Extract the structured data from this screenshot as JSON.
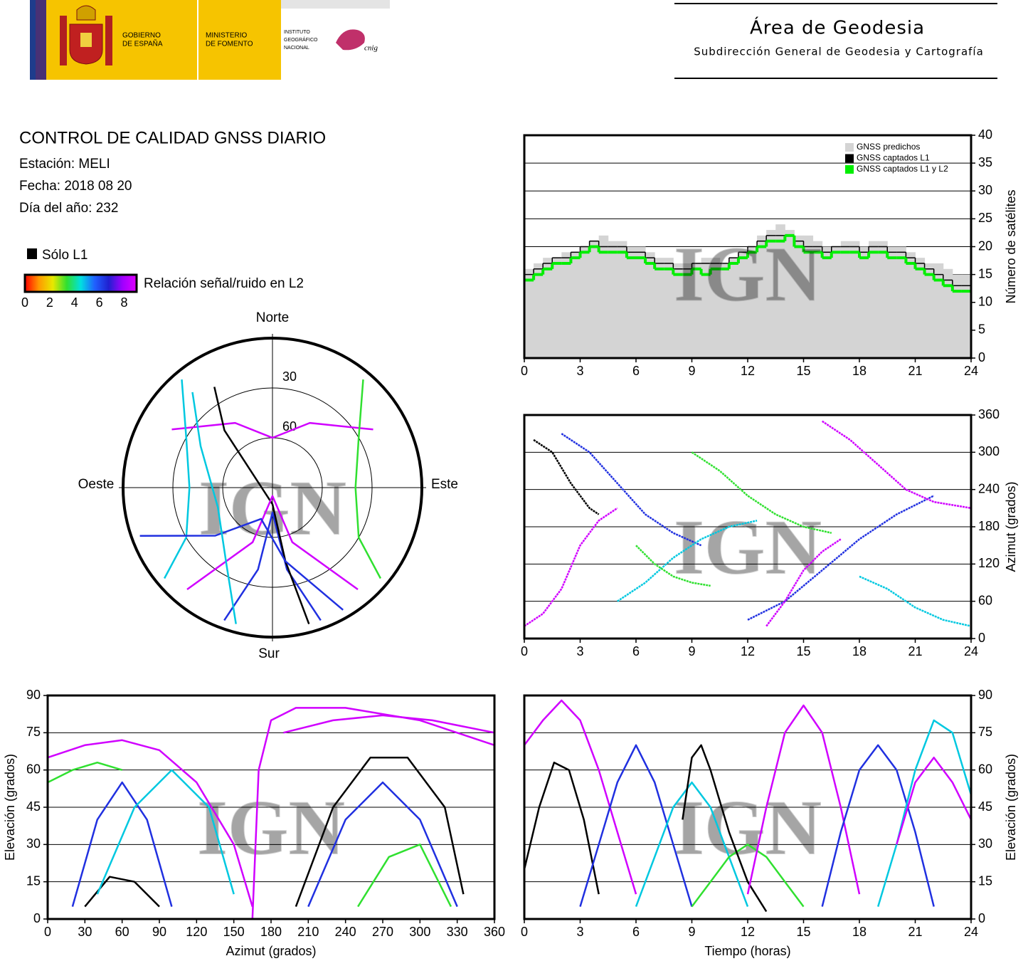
{
  "header": {
    "title": "Área de Geodesia",
    "subtitle": "Subdirección General de Geodesia y Cartografía",
    "gobierno": [
      "GOBIERNO",
      "DE ESPAÑA"
    ],
    "ministerio": [
      "MINISTERIO",
      "DE FOMENTO"
    ],
    "instituto": [
      "INSTITUTO",
      "GEOGRÁFICO",
      "NACIONAL"
    ],
    "cnig": "cnig"
  },
  "report": {
    "title": "CONTROL DE CALIDAD GNSS DIARIO",
    "station": "Estación: MELI",
    "date": "Fecha: 2018 08 20",
    "doy": "Día del año: 232",
    "legend_l1": "Sólo L1",
    "colorbar_label": "Relación señal/ruido en L2",
    "colorbar_range": [
      0,
      9
    ],
    "colorbar_ticks": [
      0,
      2,
      4,
      6,
      8
    ],
    "colorbar_colors": [
      "#ff0000",
      "#ff9900",
      "#e8e800",
      "#30e030",
      "#00e0e0",
      "#2060ff",
      "#2020d0",
      "#a000ff",
      "#e000ff"
    ]
  },
  "watermark": "IGN",
  "chart_data": [
    {
      "type": "step",
      "ylabel": "Número de satélites",
      "yaxis_position": "right",
      "grid": true,
      "legend": "top-right",
      "xlim": [
        0,
        24
      ],
      "xticks": [
        0,
        3,
        6,
        9,
        12,
        15,
        18,
        21,
        24
      ],
      "ylim": [
        0,
        40
      ],
      "yticks": [
        0,
        5,
        10,
        15,
        20,
        25,
        30,
        35,
        40
      ],
      "x": [
        0,
        0.5,
        1,
        1.5,
        2,
        2.5,
        3,
        3.5,
        4,
        4.5,
        5,
        5.5,
        6,
        6.5,
        7,
        7.5,
        8,
        8.5,
        9,
        9.5,
        10,
        10.5,
        11,
        11.5,
        12,
        12.5,
        13,
        13.5,
        14,
        14.5,
        15,
        15.5,
        16,
        16.5,
        17,
        17.5,
        18,
        18.5,
        19,
        19.5,
        20,
        20.5,
        21,
        21.5,
        22,
        22.5,
        23,
        23.5,
        24
      ],
      "series": [
        {
          "name": "GNSS predichos",
          "color": "#d4d4d4",
          "fill": true,
          "values": [
            16,
            17,
            18,
            18,
            19,
            19,
            20,
            21,
            22,
            21,
            21,
            20,
            20,
            19,
            18,
            18,
            17,
            17,
            17,
            18,
            18,
            17,
            18,
            19,
            20,
            22,
            23,
            24,
            23,
            22,
            22,
            21,
            20,
            20,
            21,
            21,
            20,
            21,
            21,
            20,
            20,
            19,
            18,
            17,
            17,
            16,
            15,
            15,
            15
          ]
        },
        {
          "name": "GNSS captados L1",
          "color": "#000000",
          "fill": false,
          "values": [
            15,
            16,
            17,
            18,
            18,
            19,
            20,
            21,
            20,
            20,
            20,
            19,
            19,
            18,
            17,
            17,
            16,
            16,
            17,
            17,
            17,
            17,
            18,
            19,
            20,
            21,
            22,
            22,
            22,
            21,
            20,
            20,
            19,
            20,
            20,
            20,
            19,
            20,
            20,
            19,
            19,
            18,
            17,
            16,
            15,
            14,
            13,
            13,
            14
          ]
        },
        {
          "name": "GNSS captados L1 y L2",
          "color": "#00ee00",
          "fill": false,
          "values": [
            14,
            15,
            16,
            17,
            17,
            18,
            19,
            20,
            19,
            19,
            19,
            18,
            18,
            17,
            16,
            16,
            15,
            15,
            16,
            15,
            16,
            16,
            17,
            18,
            19,
            20,
            21,
            21,
            22,
            20,
            19,
            19,
            18,
            19,
            19,
            19,
            18,
            19,
            19,
            18,
            18,
            17,
            16,
            15,
            14,
            13,
            12,
            12,
            12
          ]
        }
      ]
    },
    {
      "type": "line",
      "ylabel": "Azimut (grados)",
      "yaxis_position": "right",
      "grid": true,
      "xlim": [
        0,
        24
      ],
      "xticks": [
        0,
        3,
        6,
        9,
        12,
        15,
        18,
        21,
        24
      ],
      "ylim": [
        0,
        360
      ],
      "yticks": [
        0,
        60,
        120,
        180,
        240,
        300,
        360
      ],
      "series": [
        {
          "color": "#d000ff",
          "x": [
            0,
            1,
            2,
            3,
            4,
            5
          ],
          "values": [
            20,
            40,
            80,
            150,
            190,
            210
          ]
        },
        {
          "color": "#2030e0",
          "x": [
            2,
            3.5,
            5,
            6.5,
            8,
            9.5
          ],
          "values": [
            330,
            300,
            250,
            200,
            170,
            150
          ]
        },
        {
          "color": "#00c8e0",
          "x": [
            5,
            6.5,
            8,
            9.5,
            11,
            12.5
          ],
          "values": [
            60,
            90,
            130,
            160,
            180,
            190
          ]
        },
        {
          "color": "#30e030",
          "x": [
            9,
            10.5,
            12,
            13.5,
            15,
            16.5
          ],
          "values": [
            300,
            270,
            230,
            200,
            180,
            170
          ]
        },
        {
          "color": "#000000",
          "x": [
            0.5,
            1.5,
            2.5,
            3.5,
            4
          ],
          "values": [
            320,
            300,
            250,
            210,
            200
          ]
        },
        {
          "color": "#2030e0",
          "x": [
            12,
            14,
            16,
            18,
            20,
            22
          ],
          "values": [
            30,
            60,
            110,
            160,
            200,
            230
          ]
        },
        {
          "color": "#d000ff",
          "x": [
            16,
            17.5,
            19,
            20.5,
            22,
            24
          ],
          "values": [
            350,
            320,
            280,
            240,
            220,
            210
          ]
        },
        {
          "color": "#00c8e0",
          "x": [
            18,
            19.5,
            21,
            22.5,
            24
          ],
          "values": [
            100,
            80,
            50,
            30,
            20
          ]
        },
        {
          "color": "#30e030",
          "x": [
            6,
            7,
            8,
            9,
            10
          ],
          "values": [
            150,
            120,
            100,
            90,
            85
          ]
        },
        {
          "color": "#d000ff",
          "x": [
            13,
            14,
            15,
            16,
            17
          ],
          "values": [
            20,
            60,
            110,
            140,
            160
          ]
        }
      ]
    },
    {
      "type": "polar",
      "north": "Norte",
      "south": "Sur",
      "east": "Este",
      "west": "Oeste",
      "rlim": [
        0,
        90
      ],
      "rticks": [
        30,
        60
      ],
      "series": [
        {
          "color": "#d000ff",
          "azimuth": [
            300,
            330,
            0,
            30,
            60
          ],
          "elevation": [
            20,
            45,
            60,
            45,
            20
          ]
        },
        {
          "color": "#2030e0",
          "azimuth": [
            200,
            190,
            180,
            170,
            160
          ],
          "elevation": [
            5,
            40,
            75,
            40,
            5
          ]
        },
        {
          "color": "#00c8e0",
          "azimuth": [
            230,
            240,
            270,
            300,
            320
          ],
          "elevation": [
            5,
            30,
            40,
            30,
            5
          ]
        },
        {
          "color": "#30e030",
          "azimuth": [
            130,
            120,
            90,
            60,
            40
          ],
          "elevation": [
            5,
            30,
            40,
            30,
            5
          ]
        },
        {
          "color": "#000000",
          "azimuth": [
            165,
            170,
            180,
            320,
            330
          ],
          "elevation": [
            5,
            45,
            80,
            45,
            20
          ]
        },
        {
          "color": "#d000ff",
          "azimuth": [
            220,
            200,
            180,
            160,
            140
          ],
          "elevation": [
            10,
            55,
            85,
            55,
            10
          ]
        },
        {
          "color": "#2030e0",
          "azimuth": [
            250,
            230,
            200,
            170,
            150
          ],
          "elevation": [
            5,
            45,
            70,
            45,
            5
          ]
        },
        {
          "color": "#00c8e0",
          "azimuth": [
            320,
            300,
            250,
            210,
            195
          ],
          "elevation": [
            15,
            40,
            55,
            35,
            5
          ]
        }
      ]
    },
    {
      "type": "line",
      "xlabel": "Azimut (grados)",
      "ylabel": "Elevación (grados)",
      "yaxis_position": "left",
      "grid": true,
      "xlim": [
        0,
        360
      ],
      "xticks": [
        0,
        30,
        60,
        90,
        120,
        150,
        180,
        210,
        240,
        270,
        300,
        330,
        360
      ],
      "ylim": [
        0,
        90
      ],
      "yticks": [
        0,
        15,
        30,
        45,
        60,
        75,
        90
      ],
      "series": [
        {
          "color": "#d000ff",
          "x": [
            0,
            30,
            60,
            90,
            120,
            150,
            165
          ],
          "values": [
            65,
            70,
            72,
            68,
            55,
            30,
            5
          ]
        },
        {
          "color": "#2030e0",
          "x": [
            20,
            40,
            60,
            80,
            100
          ],
          "values": [
            5,
            40,
            55,
            40,
            5
          ]
        },
        {
          "color": "#000000",
          "x": [
            30,
            50,
            70,
            90
          ],
          "values": [
            5,
            17,
            15,
            5
          ]
        },
        {
          "color": "#00c8e0",
          "x": [
            40,
            70,
            100,
            130,
            150
          ],
          "values": [
            10,
            45,
            60,
            45,
            10
          ]
        },
        {
          "color": "#000000",
          "x": [
            200,
            230,
            260,
            290,
            320,
            335
          ],
          "values": [
            5,
            45,
            65,
            65,
            45,
            10
          ]
        },
        {
          "color": "#d000ff",
          "x": [
            190,
            230,
            270,
            310,
            350,
            360
          ],
          "values": [
            75,
            80,
            82,
            80,
            76,
            75
          ]
        },
        {
          "color": "#2030e0",
          "x": [
            210,
            240,
            270,
            300,
            330
          ],
          "values": [
            5,
            40,
            55,
            40,
            5
          ]
        },
        {
          "color": "#30e030",
          "x": [
            250,
            275,
            300,
            325
          ],
          "values": [
            5,
            25,
            30,
            5
          ]
        },
        {
          "color": "#d000ff",
          "x": [
            165,
            170,
            180,
            200,
            240,
            300,
            360
          ],
          "values": [
            0,
            60,
            80,
            85,
            85,
            80,
            70
          ]
        },
        {
          "color": "#30e030",
          "x": [
            0,
            20,
            40,
            60
          ],
          "values": [
            55,
            60,
            63,
            60
          ]
        }
      ]
    },
    {
      "type": "line",
      "xlabel": "Tiempo (horas)",
      "ylabel": "Elevación (grados)",
      "yaxis_position": "right",
      "grid": true,
      "xlim": [
        0,
        24
      ],
      "xticks": [
        0,
        3,
        6,
        9,
        12,
        15,
        18,
        21,
        24
      ],
      "ylim": [
        0,
        90
      ],
      "yticks": [
        0,
        15,
        30,
        45,
        60,
        75,
        90
      ],
      "series": [
        {
          "color": "#d000ff",
          "x": [
            0,
            1,
            2,
            3,
            4,
            5,
            6
          ],
          "values": [
            70,
            80,
            88,
            80,
            60,
            35,
            10
          ]
        },
        {
          "color": "#000000",
          "x": [
            0,
            0.8,
            1.6,
            2.4,
            3.2,
            4
          ],
          "values": [
            20,
            45,
            63,
            60,
            40,
            10
          ]
        },
        {
          "color": "#2030e0",
          "x": [
            3,
            4,
            5,
            6,
            7,
            8,
            9
          ],
          "values": [
            5,
            30,
            55,
            70,
            55,
            30,
            5
          ]
        },
        {
          "color": "#00c8e0",
          "x": [
            6,
            7,
            8,
            9,
            10,
            11,
            12
          ],
          "values": [
            5,
            25,
            45,
            55,
            45,
            25,
            5
          ]
        },
        {
          "color": "#30e030",
          "x": [
            9,
            10,
            11,
            12,
            13,
            14,
            15
          ],
          "values": [
            5,
            15,
            25,
            30,
            25,
            15,
            5
          ]
        },
        {
          "color": "#000000",
          "x": [
            8.5,
            9,
            9.5,
            10,
            11,
            12,
            13
          ],
          "values": [
            40,
            65,
            70,
            60,
            35,
            15,
            3
          ]
        },
        {
          "color": "#d000ff",
          "x": [
            12,
            13,
            14,
            15,
            16,
            17,
            18
          ],
          "values": [
            10,
            45,
            75,
            86,
            75,
            45,
            10
          ]
        },
        {
          "color": "#2030e0",
          "x": [
            16,
            17,
            18,
            19,
            20,
            21,
            22
          ],
          "values": [
            5,
            35,
            60,
            70,
            60,
            35,
            5
          ]
        },
        {
          "color": "#00c8e0",
          "x": [
            19,
            20,
            21,
            22,
            23,
            24
          ],
          "values": [
            5,
            30,
            60,
            80,
            75,
            50
          ]
        },
        {
          "color": "#d000ff",
          "x": [
            20,
            21,
            22,
            23,
            24
          ],
          "values": [
            30,
            55,
            65,
            55,
            40
          ]
        }
      ]
    }
  ]
}
